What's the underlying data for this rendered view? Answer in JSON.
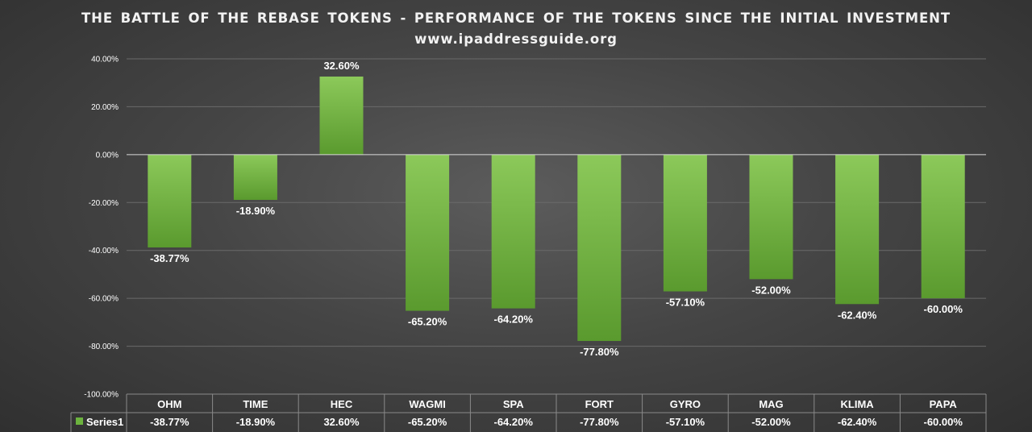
{
  "colors": {
    "bar_top": "#8cc95a",
    "bar_bottom": "#5a9a2e",
    "axis_line": "#d9d9d9",
    "gridline": "#6a6a6a",
    "table_border": "#8a8a8a",
    "legend_swatch": "#6cb33e"
  },
  "chart_data": {
    "type": "bar",
    "title": "THE BATTLE OF THE REBASE TOKENS - PERFORMANCE OF THE TOKENS SINCE THE INITIAL INVESTMENT",
    "subtitle": "www.ipaddressguide.org",
    "xlabel": "",
    "ylabel": "",
    "categories": [
      "OHM",
      "TIME",
      "HEC",
      "WAGMI",
      "SPA",
      "FORT",
      "GYRO",
      "MAG",
      "KLIMA",
      "PAPA"
    ],
    "series": [
      {
        "name": "Series1",
        "values": [
          -38.77,
          -18.9,
          32.6,
          -65.2,
          -64.2,
          -77.8,
          -57.1,
          -52.0,
          -62.4,
          -60.0
        ],
        "labels": [
          "-38.77%",
          "-18.90%",
          "32.60%",
          "-65.20%",
          "-64.20%",
          "-77.80%",
          "-57.10%",
          "-52.00%",
          "-62.40%",
          "-60.00%"
        ]
      }
    ],
    "ylim": [
      -100,
      40
    ],
    "yticks": [
      40,
      20,
      0,
      -20,
      -40,
      -60,
      -80,
      -100
    ],
    "ytick_labels": [
      "40.00%",
      "20.00%",
      "0.00%",
      "-20.00%",
      "-40.00%",
      "-60.00%",
      "-80.00%",
      "-100.00%"
    ],
    "grid": true,
    "legend": "data-table",
    "data_table": true
  }
}
